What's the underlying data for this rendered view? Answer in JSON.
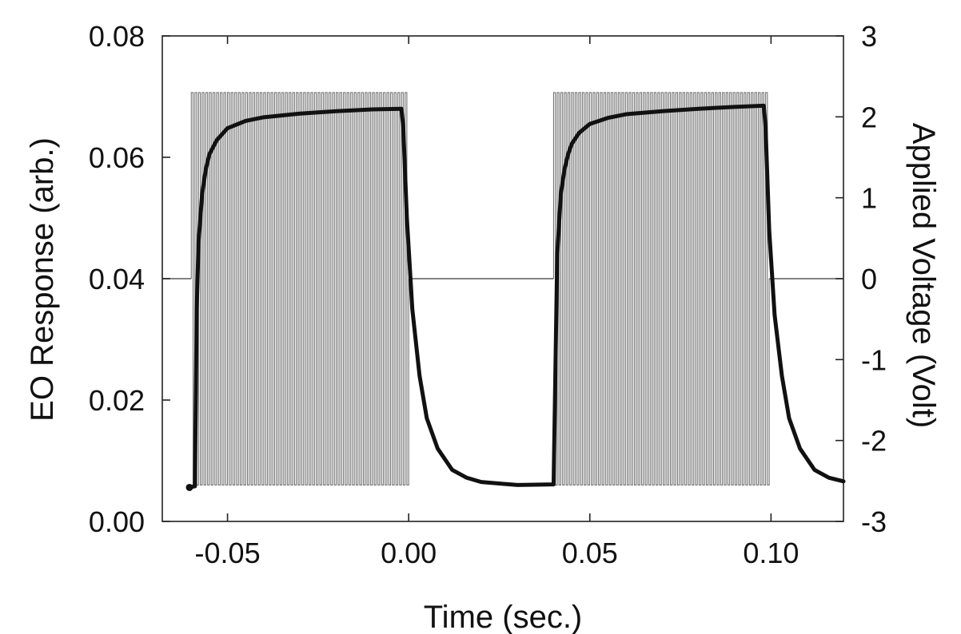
{
  "chart_data": {
    "type": "line",
    "title": "",
    "xlabel": "Time (sec.)",
    "ylabel_left": "EO Response (arb.)",
    "ylabel_right": "Applied Voltage (Volt)",
    "xlim": [
      -0.068,
      0.12
    ],
    "ylim_left": [
      0.0,
      0.08
    ],
    "ylim_right": [
      -3,
      3
    ],
    "x_ticks": [
      -0.05,
      0.0,
      0.05,
      0.1
    ],
    "x_tick_labels": [
      "-0.05",
      "0.00",
      "0.05",
      "0.10"
    ],
    "y_left_ticks": [
      0.0,
      0.02,
      0.04,
      0.06,
      0.08
    ],
    "y_left_tick_labels": [
      "0.00",
      "0.02",
      "0.04",
      "0.06",
      "0.08"
    ],
    "y_right_ticks": [
      -3,
      -2,
      -1,
      0,
      1,
      2,
      3
    ],
    "y_right_tick_labels": [
      "-3",
      "-2",
      "-1",
      "0",
      "1",
      "2",
      "3"
    ],
    "grid": false,
    "series": [
      {
        "axis": "left",
        "style": "thick black line",
        "color": "#111111",
        "x": [
          -0.0605,
          -0.059,
          -0.0585,
          -0.058,
          -0.057,
          -0.056,
          -0.055,
          -0.053,
          -0.05,
          -0.045,
          -0.04,
          -0.03,
          -0.02,
          -0.01,
          -0.002,
          -0.0015,
          -0.0005,
          0.001,
          0.003,
          0.005,
          0.008,
          0.012,
          0.016,
          0.02,
          0.03,
          0.04,
          0.0405,
          0.041,
          0.042,
          0.043,
          0.044,
          0.045,
          0.047,
          0.05,
          0.055,
          0.06,
          0.07,
          0.08,
          0.09,
          0.098,
          0.0985,
          0.0995,
          0.101,
          0.103,
          0.105,
          0.108,
          0.112,
          0.116,
          0.12
        ],
        "values": [
          0.0056,
          0.0058,
          0.035,
          0.046,
          0.054,
          0.058,
          0.0605,
          0.0628,
          0.0648,
          0.066,
          0.0666,
          0.0672,
          0.0676,
          0.0679,
          0.068,
          0.065,
          0.05,
          0.035,
          0.024,
          0.017,
          0.012,
          0.0085,
          0.0072,
          0.0065,
          0.006,
          0.0061,
          0.025,
          0.044,
          0.054,
          0.058,
          0.0605,
          0.0622,
          0.064,
          0.0655,
          0.0665,
          0.0671,
          0.0676,
          0.068,
          0.0683,
          0.0685,
          0.065,
          0.048,
          0.034,
          0.024,
          0.017,
          0.012,
          0.0085,
          0.0072,
          0.0066
        ]
      },
      {
        "axis": "right",
        "style": "thin gray square-wave AC burst",
        "color": "#5a5a5a",
        "baseline_volt": 0,
        "amplitude_volt": 2.35,
        "low_volt": -2.55,
        "high_volt": 2.3,
        "bursts": [
          {
            "start": -0.06,
            "end": 0.0
          },
          {
            "start": 0.04,
            "end": 0.0995
          }
        ],
        "cycle_period_sec": 0.001
      }
    ]
  }
}
